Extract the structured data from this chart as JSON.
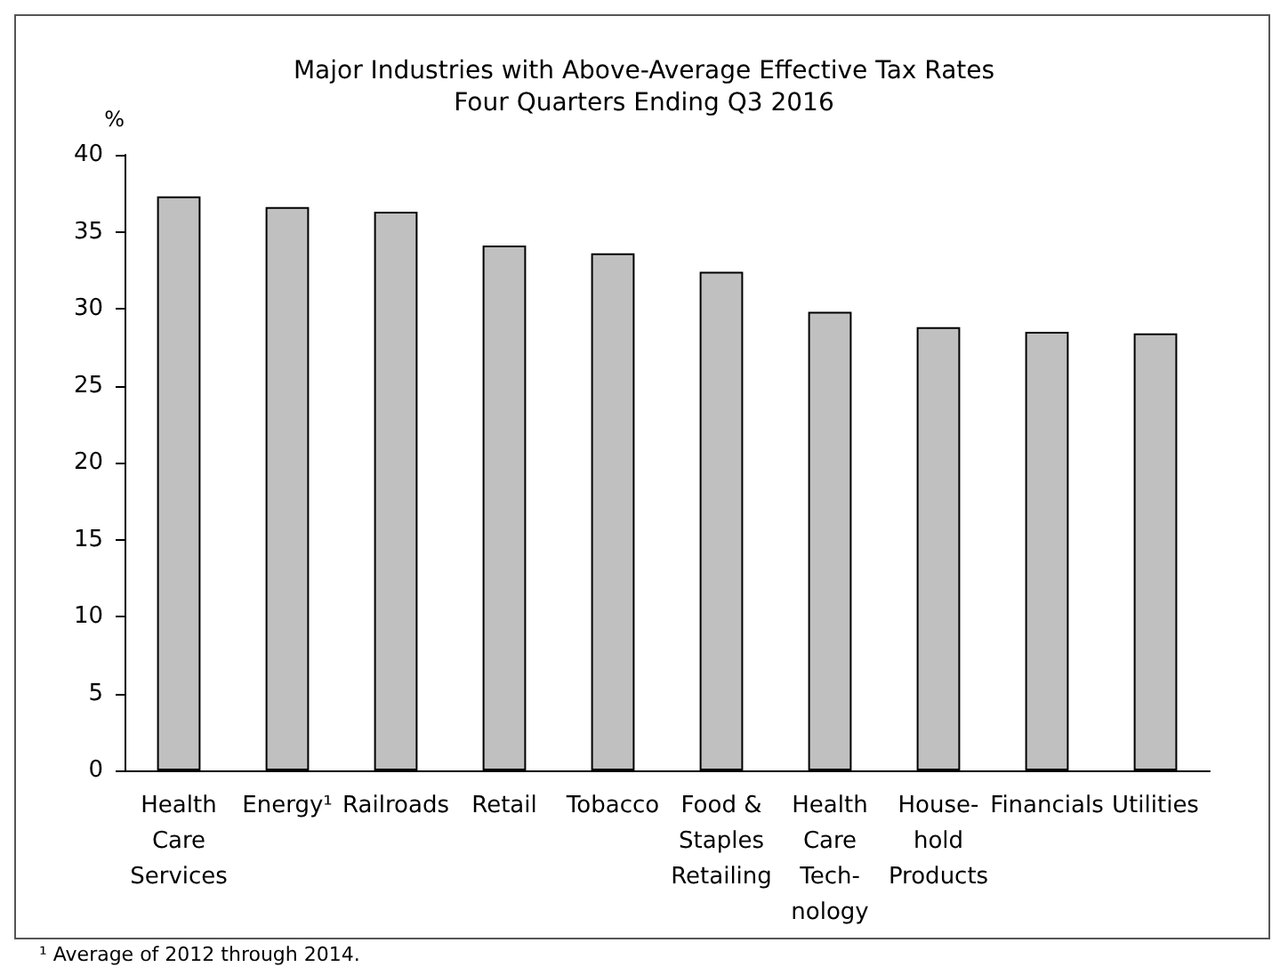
{
  "chart_data": {
    "type": "bar",
    "title": "Major Industries with Above-Average Effective Tax Rates",
    "subtitle": "Four Quarters Ending Q3 2016",
    "ylabel": "%",
    "categories": [
      "Health\nCare\nServices",
      "Energy¹",
      "Railroads",
      "Retail",
      "Tobacco",
      "Food &\nStaples\nRetailing",
      "Health\nCare\nTech-\nnology",
      "House-\nhold\nProducts",
      "Financials",
      "Utilities"
    ],
    "values": [
      37.3,
      36.6,
      36.3,
      34.1,
      33.6,
      32.4,
      29.8,
      28.8,
      28.5,
      28.4
    ],
    "color": "#c0c0c0",
    "ylim": [
      0,
      40
    ],
    "yticks": [
      0,
      5,
      10,
      15,
      20,
      25,
      30,
      35,
      40
    ],
    "grid": false,
    "annotations": [
      "¹ Average of 2012 through 2014."
    ]
  }
}
